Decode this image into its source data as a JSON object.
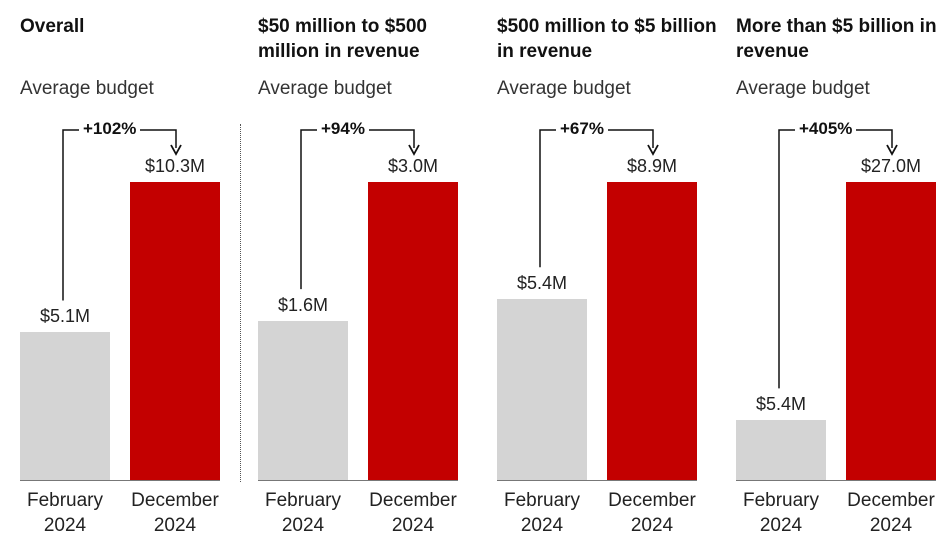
{
  "colors": {
    "february": "#d4d4d4",
    "december": "#c30000",
    "text": "#222222"
  },
  "chart_data": [
    {
      "type": "bar",
      "title": "Overall",
      "subtitle": "Average budget",
      "categories": [
        "February 2024",
        "December 2024"
      ],
      "x_labels": [
        [
          "February",
          "2024"
        ],
        [
          "December",
          "2024"
        ]
      ],
      "values": [
        5.1,
        10.3
      ],
      "value_labels": [
        "$5.1M",
        "$10.3M"
      ],
      "change_label": "+102%",
      "ylim": [
        0,
        10.3
      ]
    },
    {
      "type": "bar",
      "title": "$50 million to $500 million in revenue",
      "subtitle": "Average budget",
      "categories": [
        "February 2024",
        "December 2024"
      ],
      "x_labels": [
        [
          "February",
          "2024"
        ],
        [
          "December",
          "2024"
        ]
      ],
      "values": [
        1.6,
        3.0
      ],
      "value_labels": [
        "$1.6M",
        "$3.0M"
      ],
      "change_label": "+94%",
      "ylim": [
        0,
        3.0
      ]
    },
    {
      "type": "bar",
      "title": "$500 million to $5 billion in revenue",
      "subtitle": "Average budget",
      "categories": [
        "February 2024",
        "December 2024"
      ],
      "x_labels": [
        [
          "February",
          "2024"
        ],
        [
          "December",
          "2024"
        ]
      ],
      "values": [
        5.4,
        8.9
      ],
      "value_labels": [
        "$5.4M",
        "$8.9M"
      ],
      "change_label": "+67%",
      "ylim": [
        0,
        8.9
      ]
    },
    {
      "type": "bar",
      "title": "More than $5 billion in revenue",
      "subtitle": "Average budget",
      "categories": [
        "February 2024",
        "December 2024"
      ],
      "x_labels": [
        [
          "February",
          "2024"
        ],
        [
          "December",
          "2024"
        ]
      ],
      "values": [
        5.4,
        27.0
      ],
      "value_labels": [
        "$5.4M",
        "$27.0M"
      ],
      "change_label": "+405%",
      "ylim": [
        0,
        27.0
      ]
    }
  ]
}
